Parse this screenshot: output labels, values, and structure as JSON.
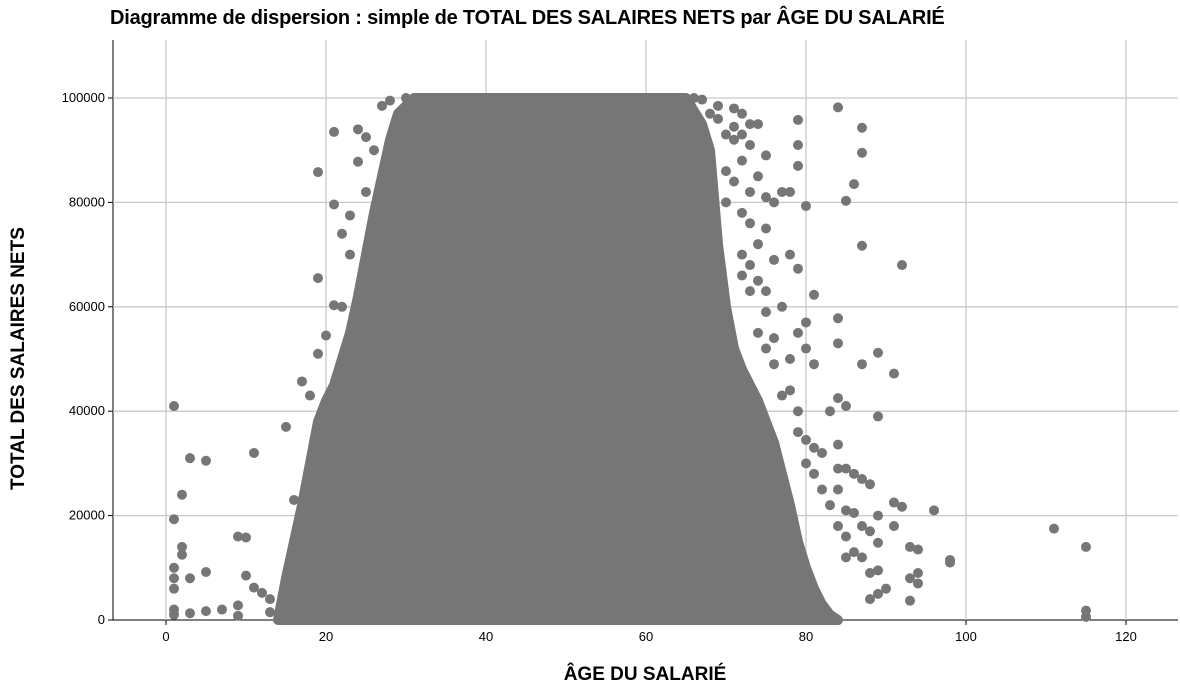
{
  "chart_data": {
    "type": "scatter",
    "title": "Diagramme de dispersion : simple de TOTAL DES SALAIRES NETS par ÂGE DU SALARIÉ",
    "xlabel": "ÂGE DU SALARIÉ",
    "ylabel": "TOTAL DES SALAIRES NETS",
    "xlim": [
      -6,
      126
    ],
    "ylim": [
      0,
      100000
    ],
    "xticks": [
      "0",
      "20",
      "40",
      "60",
      "80",
      "100",
      "120"
    ],
    "yticks": [
      "0",
      "20000",
      "40000",
      "60000",
      "80000",
      "100000"
    ],
    "grid": true,
    "marker_color": "#767676",
    "dense_region": {
      "description_points": [
        [
          14,
          0
        ],
        [
          15,
          8000
        ],
        [
          16,
          15000
        ],
        [
          17,
          22000
        ],
        [
          18,
          30000
        ],
        [
          19,
          38000
        ],
        [
          20,
          42000
        ],
        [
          21,
          45000
        ],
        [
          22,
          50000
        ],
        [
          23,
          55000
        ],
        [
          24,
          62000
        ],
        [
          25,
          70000
        ],
        [
          26,
          78000
        ],
        [
          27,
          85000
        ],
        [
          28,
          92000
        ],
        [
          29,
          97000
        ],
        [
          31,
          100000
        ],
        [
          65,
          100000
        ],
        [
          67,
          95000
        ],
        [
          68,
          90000
        ],
        [
          69,
          72000
        ],
        [
          70,
          60000
        ],
        [
          71,
          52000
        ],
        [
          72,
          48000
        ],
        [
          73,
          45000
        ],
        [
          74,
          42000
        ],
        [
          75,
          38000
        ],
        [
          76,
          34000
        ],
        [
          77,
          28000
        ],
        [
          78,
          22000
        ],
        [
          79,
          15000
        ],
        [
          80,
          10000
        ],
        [
          81,
          6000
        ],
        [
          82,
          3000
        ],
        [
          83,
          1000
        ],
        [
          84,
          0
        ]
      ]
    },
    "points": [
      [
        1,
        41000
      ],
      [
        1,
        19300
      ],
      [
        1,
        10000
      ],
      [
        1,
        8000
      ],
      [
        1,
        6000
      ],
      [
        1,
        2000
      ],
      [
        1,
        1000
      ],
      [
        2,
        24000
      ],
      [
        2,
        14000
      ],
      [
        2,
        12500
      ],
      [
        3,
        31000
      ],
      [
        3,
        8000
      ],
      [
        3,
        1300
      ],
      [
        5,
        30500
      ],
      [
        5,
        9200
      ],
      [
        5,
        1700
      ],
      [
        7,
        2000
      ],
      [
        9,
        16000
      ],
      [
        9,
        2800
      ],
      [
        9,
        800
      ],
      [
        10,
        15800
      ],
      [
        10,
        8500
      ],
      [
        11,
        32000
      ],
      [
        11,
        6200
      ],
      [
        12,
        5200
      ],
      [
        13,
        4000
      ],
      [
        13,
        1500
      ],
      [
        15,
        37000
      ],
      [
        16,
        23000
      ],
      [
        17,
        45700
      ],
      [
        18,
        43000
      ],
      [
        19,
        65500
      ],
      [
        19,
        85800
      ],
      [
        19,
        51000
      ],
      [
        20,
        54500
      ],
      [
        21,
        93500
      ],
      [
        21,
        79600
      ],
      [
        21,
        60300
      ],
      [
        22,
        74000
      ],
      [
        22,
        60000
      ],
      [
        23,
        77500
      ],
      [
        23,
        70000
      ],
      [
        24,
        94000
      ],
      [
        24,
        87800
      ],
      [
        25,
        92500
      ],
      [
        25,
        82000
      ],
      [
        26,
        90000
      ],
      [
        27,
        98500
      ],
      [
        28,
        99500
      ],
      [
        29,
        96000
      ],
      [
        30,
        100000
      ],
      [
        66,
        100000
      ],
      [
        67,
        99700
      ],
      [
        68,
        97000
      ],
      [
        69,
        98500
      ],
      [
        69,
        96000
      ],
      [
        70,
        93000
      ],
      [
        70,
        86000
      ],
      [
        70,
        80000
      ],
      [
        71,
        98000
      ],
      [
        71,
        94500
      ],
      [
        71,
        92000
      ],
      [
        71,
        84000
      ],
      [
        72,
        97000
      ],
      [
        72,
        93000
      ],
      [
        72,
        88000
      ],
      [
        72,
        78000
      ],
      [
        72,
        70000
      ],
      [
        72,
        66000
      ],
      [
        73,
        95000
      ],
      [
        73,
        91000
      ],
      [
        73,
        82000
      ],
      [
        73,
        76000
      ],
      [
        73,
        68000
      ],
      [
        73,
        63000
      ],
      [
        74,
        95000
      ],
      [
        74,
        85000
      ],
      [
        74,
        72000
      ],
      [
        74,
        65000
      ],
      [
        74,
        55000
      ],
      [
        75,
        89000
      ],
      [
        75,
        81000
      ],
      [
        75,
        75000
      ],
      [
        75,
        63000
      ],
      [
        75,
        59000
      ],
      [
        75,
        52000
      ],
      [
        76,
        80000
      ],
      [
        76,
        69000
      ],
      [
        76,
        54000
      ],
      [
        76,
        49000
      ],
      [
        77,
        82000
      ],
      [
        77,
        60000
      ],
      [
        77,
        43000
      ],
      [
        78,
        82000
      ],
      [
        78,
        70000
      ],
      [
        78,
        50000
      ],
      [
        78,
        44000
      ],
      [
        79,
        95800
      ],
      [
        79,
        91000
      ],
      [
        79,
        87000
      ],
      [
        79,
        67300
      ],
      [
        79,
        55000
      ],
      [
        79,
        40000
      ],
      [
        79,
        36000
      ],
      [
        80,
        79300
      ],
      [
        80,
        57000
      ],
      [
        80,
        52000
      ],
      [
        80,
        34500
      ],
      [
        80,
        30000
      ],
      [
        81,
        62300
      ],
      [
        81,
        49000
      ],
      [
        81,
        33000
      ],
      [
        81,
        28000
      ],
      [
        82,
        32000
      ],
      [
        82,
        25000
      ],
      [
        83,
        40000
      ],
      [
        83,
        22000
      ],
      [
        84,
        98200
      ],
      [
        84,
        57800
      ],
      [
        84,
        53000
      ],
      [
        84,
        42500
      ],
      [
        84,
        33600
      ],
      [
        84,
        29000
      ],
      [
        84,
        25000
      ],
      [
        84,
        18000
      ],
      [
        85,
        80300
      ],
      [
        85,
        41000
      ],
      [
        85,
        29000
      ],
      [
        85,
        21000
      ],
      [
        85,
        16000
      ],
      [
        85,
        12000
      ],
      [
        86,
        83500
      ],
      [
        86,
        28000
      ],
      [
        86,
        20500
      ],
      [
        86,
        13000
      ],
      [
        87,
        94300
      ],
      [
        87,
        89500
      ],
      [
        87,
        71700
      ],
      [
        87,
        49000
      ],
      [
        87,
        27000
      ],
      [
        87,
        18000
      ],
      [
        87,
        12000
      ],
      [
        88,
        26000
      ],
      [
        88,
        17000
      ],
      [
        88,
        9000
      ],
      [
        88,
        4000
      ],
      [
        89,
        51200
      ],
      [
        89,
        39000
      ],
      [
        89,
        20000
      ],
      [
        89,
        14800
      ],
      [
        89,
        9500
      ],
      [
        89,
        5000
      ],
      [
        90,
        6000
      ],
      [
        91,
        47200
      ],
      [
        91,
        22500
      ],
      [
        91,
        18000
      ],
      [
        92,
        68000
      ],
      [
        92,
        21700
      ],
      [
        93,
        14000
      ],
      [
        93,
        3700
      ],
      [
        93,
        8000
      ],
      [
        94,
        13500
      ],
      [
        94,
        7000
      ],
      [
        94,
        9000
      ],
      [
        96,
        21000
      ],
      [
        98,
        11500
      ],
      [
        98,
        11000
      ],
      [
        111,
        17500
      ],
      [
        115,
        14000
      ],
      [
        115,
        1800
      ],
      [
        115,
        600
      ]
    ]
  }
}
